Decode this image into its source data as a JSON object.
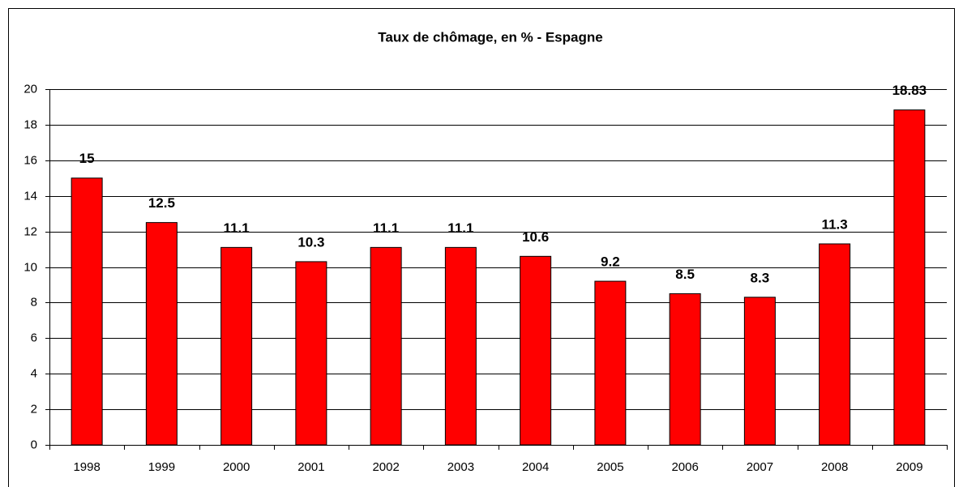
{
  "chart_data": {
    "type": "bar",
    "title": "Taux de chômage, en % - Espagne",
    "categories": [
      "1998",
      "1999",
      "2000",
      "2001",
      "2002",
      "2003",
      "2004",
      "2005",
      "2006",
      "2007",
      "2008",
      "2009"
    ],
    "values": [
      15,
      12.5,
      11.1,
      10.3,
      11.1,
      11.1,
      10.6,
      9.2,
      8.5,
      8.3,
      11.3,
      18.83
    ],
    "color": "#ff0000",
    "ylim": [
      0,
      20
    ],
    "yticks": [
      0,
      2,
      4,
      6,
      8,
      10,
      12,
      14,
      16,
      18,
      20
    ],
    "grid": true
  }
}
